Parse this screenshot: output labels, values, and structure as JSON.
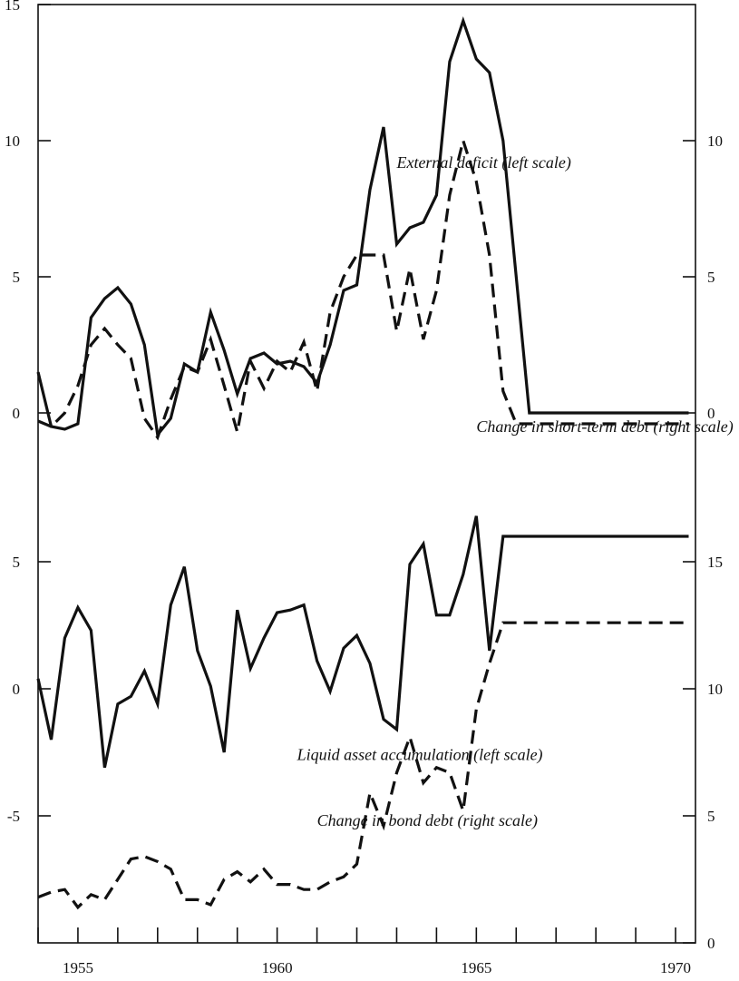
{
  "chart_data": {
    "type": "line",
    "x_axis": {
      "tick_labels": [
        "1955",
        "1960",
        "1965",
        "1970"
      ],
      "range": [
        1954.0,
        1970.5
      ]
    },
    "panels": [
      {
        "left_scale": {
          "range": [
            -5,
            15
          ],
          "tick_labels": [
            "15",
            "10",
            "5",
            "0"
          ]
        },
        "right_scale": {
          "range": [
            -5,
            15
          ],
          "tick_labels": [
            "10",
            "5",
            "0"
          ]
        },
        "series": [
          {
            "name": "External deficit (left scale)",
            "axis": "left",
            "style": "solid",
            "x": [
              1954.0,
              1954.33,
              1954.67,
              1955.0,
              1955.33,
              1955.67,
              1956.0,
              1956.33,
              1956.67,
              1957.0,
              1957.33,
              1957.67,
              1958.0,
              1958.33,
              1958.67,
              1959.0,
              1959.33,
              1959.67,
              1960.0,
              1960.33,
              1960.67,
              1961.0,
              1961.33,
              1961.67,
              1962.0,
              1962.33,
              1962.67,
              1963.0,
              1963.33,
              1963.67,
              1964.0,
              1964.33,
              1964.67,
              1965.0,
              1965.33,
              1965.67,
              1966.0,
              1966.33,
              1966.67,
              1967.0,
              1967.33,
              1967.67,
              1968.0,
              1968.33,
              1968.67,
              1969.0,
              1969.33,
              1969.67,
              1970.0,
              1970.33
            ],
            "values": [
              1.5,
              -0.5,
              -0.6,
              -0.4,
              3.5,
              4.2,
              4.6,
              4.0,
              2.5,
              -0.8,
              -0.2,
              1.8,
              1.5,
              3.7,
              2.3,
              0.7,
              2.0,
              2.2,
              1.8,
              1.9,
              1.7,
              1.1,
              2.5,
              4.5,
              4.7,
              8.2,
              10.5,
              6.2,
              6.8,
              7.0,
              8.0,
              12.9,
              14.4,
              13.0,
              12.5,
              10.0,
              5.0,
              0.0,
              0.0,
              0.0,
              0.0,
              0.0,
              0.0,
              0.0,
              0.0,
              0.0,
              0.0,
              0.0,
              0.0,
              0.0
            ]
          },
          {
            "name": "Change in short-term debt (right scale)",
            "axis": "right",
            "style": "dashed",
            "x": [
              1954.0,
              1954.33,
              1954.67,
              1955.0,
              1955.33,
              1955.67,
              1956.0,
              1956.33,
              1956.67,
              1957.0,
              1957.33,
              1957.67,
              1958.0,
              1958.33,
              1958.67,
              1959.0,
              1959.33,
              1959.67,
              1960.0,
              1960.33,
              1960.67,
              1961.0,
              1961.33,
              1961.67,
              1962.0,
              1962.33,
              1962.67,
              1963.0,
              1963.33,
              1963.67,
              1964.0,
              1964.33,
              1964.67,
              1965.0,
              1965.33,
              1965.67,
              1966.0,
              1966.33,
              1966.67,
              1967.0,
              1967.33,
              1967.67,
              1968.0,
              1968.33,
              1968.67,
              1969.0,
              1969.33,
              1969.67,
              1970.0,
              1970.33
            ],
            "values": [
              -0.3,
              -0.5,
              0.0,
              1.0,
              2.5,
              3.1,
              2.5,
              2.0,
              -0.2,
              -0.9,
              0.5,
              1.7,
              1.5,
              2.7,
              1.0,
              -0.7,
              1.9,
              0.9,
              1.9,
              1.5,
              2.6,
              0.8,
              3.7,
              5.0,
              5.8,
              5.8,
              5.8,
              3.0,
              5.3,
              2.7,
              4.5,
              8.0,
              10.0,
              8.5,
              5.8,
              0.8,
              -0.4,
              -0.4,
              -0.4,
              -0.4,
              -0.4,
              -0.4,
              -0.4,
              -0.4,
              -0.4,
              -0.4,
              -0.4,
              -0.4,
              -0.4,
              -0.4
            ]
          }
        ]
      },
      {
        "left_scale": {
          "range": [
            -10,
            8
          ],
          "tick_labels": [
            "5",
            "0",
            "-5"
          ]
        },
        "right_scale": {
          "range": [
            0,
            18
          ],
          "tick_labels": [
            "15",
            "10",
            "5",
            "0"
          ]
        },
        "series": [
          {
            "name": "Liquid asset accumulation (left scale)",
            "axis": "left",
            "style": "solid",
            "x": [
              1954.0,
              1954.33,
              1954.67,
              1955.0,
              1955.33,
              1955.67,
              1956.0,
              1956.33,
              1956.67,
              1957.0,
              1957.33,
              1957.67,
              1958.0,
              1958.33,
              1958.67,
              1959.0,
              1959.33,
              1959.67,
              1960.0,
              1960.33,
              1960.67,
              1961.0,
              1961.33,
              1961.67,
              1962.0,
              1962.33,
              1962.67,
              1963.0,
              1963.33,
              1963.67,
              1964.0,
              1964.33,
              1964.67,
              1965.0,
              1965.33,
              1965.67,
              1966.0,
              1966.33,
              1966.67,
              1967.0,
              1967.33,
              1967.67,
              1968.0,
              1968.33,
              1968.67,
              1969.0,
              1969.33,
              1969.67,
              1970.0,
              1970.33
            ],
            "values": [
              0.4,
              -2.0,
              2.0,
              3.2,
              2.3,
              -3.1,
              -0.6,
              -0.3,
              0.7,
              -0.6,
              3.3,
              4.8,
              1.5,
              0.1,
              -2.5,
              3.1,
              0.8,
              2.0,
              3.0,
              3.1,
              3.3,
              1.1,
              -0.1,
              1.6,
              2.1,
              1.0,
              -1.2,
              -1.6,
              4.9,
              5.7,
              2.9,
              2.9,
              4.5,
              6.8,
              1.5,
              6.0,
              6.0,
              6.0,
              6.0,
              6.0,
              6.0,
              6.0,
              6.0,
              6.0,
              6.0,
              6.0,
              6.0,
              6.0,
              6.0,
              6.0
            ]
          },
          {
            "name": "Change in bond debt (right scale)",
            "axis": "right",
            "style": "dashed",
            "x": [
              1954.0,
              1954.33,
              1954.67,
              1955.0,
              1955.33,
              1955.67,
              1956.0,
              1956.33,
              1956.67,
              1957.0,
              1957.33,
              1957.67,
              1958.0,
              1958.33,
              1958.67,
              1959.0,
              1959.33,
              1959.67,
              1960.0,
              1960.33,
              1960.67,
              1961.0,
              1961.33,
              1961.67,
              1962.0,
              1962.33,
              1962.67,
              1963.0,
              1963.33,
              1963.67,
              1964.0,
              1964.33,
              1964.67,
              1965.0,
              1965.33,
              1965.67,
              1966.0,
              1966.33,
              1966.67,
              1967.0,
              1967.33,
              1967.67,
              1968.0,
              1968.33,
              1968.67,
              1969.0,
              1969.33,
              1969.67,
              1970.0,
              1970.33
            ],
            "values": [
              1.8,
              2.0,
              2.1,
              1.4,
              1.9,
              1.7,
              2.5,
              3.3,
              3.4,
              3.2,
              2.9,
              1.7,
              1.7,
              1.5,
              2.5,
              2.8,
              2.4,
              2.9,
              2.3,
              2.3,
              2.1,
              2.1,
              2.4,
              2.6,
              3.1,
              5.9,
              4.6,
              6.7,
              8.1,
              6.3,
              6.9,
              6.7,
              5.2,
              9.2,
              11.0,
              12.6,
              12.6,
              12.6,
              12.6,
              12.6,
              12.6,
              12.6,
              12.6,
              12.6,
              12.6,
              12.6,
              12.6,
              12.6,
              12.6,
              12.6
            ]
          }
        ]
      }
    ],
    "grid": false,
    "legend": "inline labels"
  }
}
